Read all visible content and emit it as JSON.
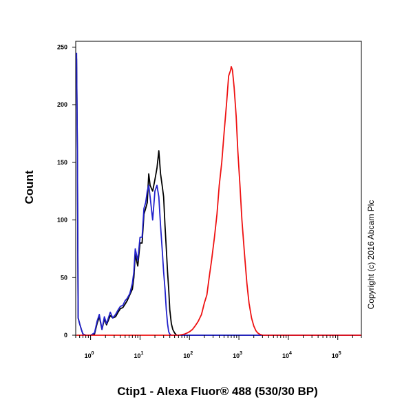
{
  "chart_data": {
    "type": "line",
    "title": "",
    "xlabel": "Ctip1 - Alexa Fluor® 488 (530/30 BP)",
    "ylabel": "Count",
    "x_scale": "log",
    "xlim": [
      0.5,
      300000
    ],
    "ylim": [
      0,
      255
    ],
    "x_ticks": [
      {
        "value": 1,
        "base": "10",
        "exp": "0"
      },
      {
        "value": 10,
        "base": "10",
        "exp": "1"
      },
      {
        "value": 100,
        "base": "10",
        "exp": "2"
      },
      {
        "value": 1000,
        "base": "10",
        "exp": "3"
      },
      {
        "value": 10000,
        "base": "10",
        "exp": "4"
      },
      {
        "value": 100000,
        "base": "10",
        "exp": "5"
      }
    ],
    "y_ticks": [
      0,
      50,
      100,
      150,
      200,
      250
    ],
    "grid": false,
    "series": [
      {
        "color": "#000000",
        "x": [
          0.52,
          0.54,
          0.56,
          0.6,
          0.65,
          0.7,
          0.8,
          0.9,
          1.0,
          1.2,
          1.35,
          1.5,
          1.7,
          1.9,
          2.1,
          2.5,
          2.8,
          3.2,
          3.6,
          4,
          4.5,
          5,
          5.5,
          6.2,
          7,
          7.5,
          8,
          9,
          10,
          11,
          12,
          13,
          14,
          15,
          16,
          18,
          20,
          22,
          24,
          26,
          28,
          30,
          32,
          34,
          36,
          38,
          40,
          43,
          46,
          50,
          55,
          60,
          65,
          70,
          80,
          90,
          100,
          110,
          120,
          130,
          150,
          300000
        ],
        "y": [
          240,
          160,
          15,
          10,
          5,
          1,
          0,
          0,
          0,
          1,
          10,
          16,
          5,
          14,
          9,
          17,
          15,
          16,
          20,
          23,
          24,
          27,
          30,
          35,
          40,
          50,
          70,
          60,
          80,
          80,
          105,
          110,
          115,
          140,
          130,
          125,
          135,
          145,
          160,
          140,
          130,
          120,
          95,
          75,
          55,
          40,
          22,
          10,
          5,
          2,
          0,
          0,
          0,
          0,
          0,
          0,
          0,
          0,
          0,
          0,
          0,
          0
        ]
      },
      {
        "color": "#2222cc",
        "x": [
          0.52,
          0.54,
          0.56,
          0.6,
          0.65,
          0.7,
          0.8,
          0.9,
          1.0,
          1.2,
          1.35,
          1.5,
          1.7,
          1.9,
          2.1,
          2.5,
          2.8,
          3.2,
          3.6,
          4,
          4.5,
          5,
          5.5,
          6.2,
          7,
          7.5,
          8,
          9,
          10,
          11,
          12,
          13,
          14,
          15,
          16,
          18,
          20,
          22,
          24,
          26,
          28,
          30,
          32,
          34,
          36,
          38,
          40,
          43,
          46,
          50,
          55,
          60,
          65,
          70,
          80,
          300000
        ],
        "y": [
          245,
          160,
          15,
          10,
          5,
          1,
          0,
          0,
          0,
          2,
          12,
          18,
          5,
          16,
          10,
          20,
          15,
          18,
          22,
          25,
          26,
          30,
          32,
          36,
          45,
          55,
          75,
          65,
          85,
          85,
          110,
          115,
          125,
          130,
          120,
          100,
          125,
          130,
          120,
          95,
          75,
          55,
          40,
          22,
          10,
          3,
          1,
          0,
          0,
          0,
          0,
          0,
          0,
          0,
          0,
          0
        ]
      },
      {
        "color": "#ee1111",
        "x": [
          0.52,
          50,
          60,
          70,
          80,
          90,
          100,
          115,
          130,
          150,
          175,
          200,
          225,
          250,
          280,
          320,
          360,
          400,
          450,
          500,
          560,
          620,
          680,
          700,
          740,
          800,
          880,
          950,
          1050,
          1150,
          1300,
          1450,
          1600,
          1800,
          2000,
          2200,
          2400,
          2600,
          2800,
          3000,
          3300,
          4000,
          300000
        ],
        "y": [
          0,
          0,
          0,
          0.5,
          1,
          2,
          3,
          5,
          8,
          12,
          18,
          28,
          35,
          50,
          65,
          85,
          105,
          130,
          150,
          175,
          200,
          225,
          230,
          233,
          230,
          215,
          190,
          160,
          130,
          100,
          70,
          45,
          28,
          15,
          8,
          4,
          2,
          1,
          0.5,
          0,
          0,
          0,
          0
        ]
      }
    ],
    "annotations": [
      "Copyright (c) 2016 Abcam Plc"
    ]
  }
}
